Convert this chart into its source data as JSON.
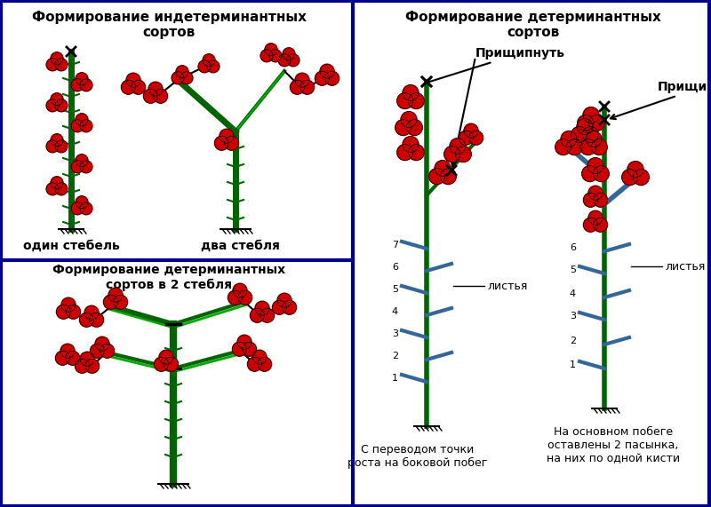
{
  "title_left_top": "Формирование индетерминантных\nсортов",
  "title_right_top": "Формирование детерминантных\nсортов",
  "title_left_bottom": "Формирование детерминантных\nсортов в 2 стебля",
  "label_one_stem": "один стебель",
  "label_two_stem": "два стебля",
  "label_pinch": "Прищипнуть",
  "label_leaves": "листья",
  "label_bottom_left": "С переводом точки\nроста на боковой побег",
  "label_bottom_right": "На основном побеге\nоставлены 2 пасынка,\nна них по одной кисти",
  "stem_color": "#006400",
  "tomato_color": "#cc0000",
  "side_branch_color": "#336699",
  "bg_color": "#ffffff",
  "border_color": "#00008B",
  "text_color": "#000000"
}
